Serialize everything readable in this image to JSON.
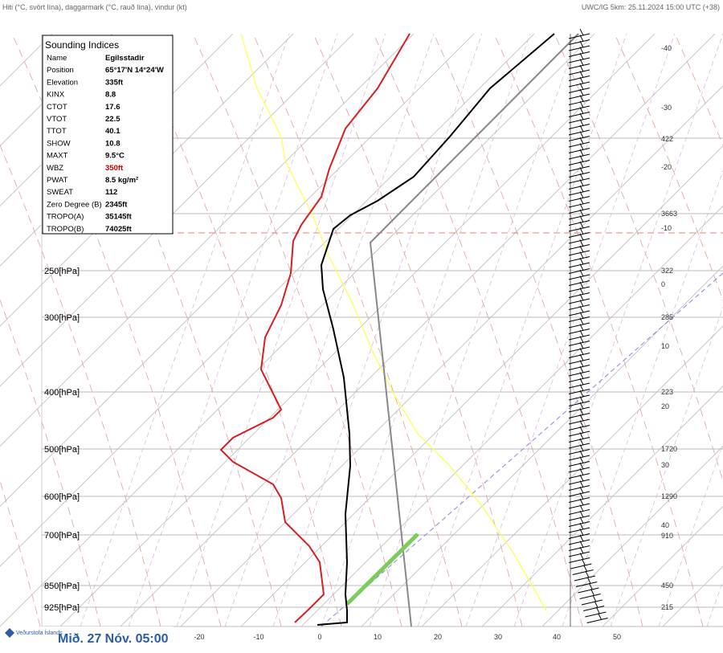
{
  "header": {
    "left": "Hiti (°C, svört lína), daggarmark (°C, rauð lína), vindur (kt)",
    "right": "UWC/IG 5km: 25.11.2024 15:00 UTC (+38)"
  },
  "indices": {
    "title": "Sounding Indices",
    "rows": [
      [
        "Name",
        "Egilsstadir"
      ],
      [
        "Position",
        "65°17'N 14°24'W"
      ],
      [
        "Elevation",
        "335ft"
      ],
      [
        "KINX",
        "8.8"
      ],
      [
        "CTOT",
        "17.6"
      ],
      [
        "VTOT",
        "22.5"
      ],
      [
        "TTOT",
        "40.1"
      ],
      [
        "SHOW",
        "10.8"
      ],
      [
        "MAXT",
        "9.5°C"
      ],
      [
        "WBZ",
        "350ft"
      ],
      [
        "PWAT",
        "8.5 kg/m²"
      ],
      [
        "SWEAT",
        "112"
      ],
      [
        "Zero Degree (B)",
        "2345ft"
      ],
      [
        "TROPO(A)",
        "35145ft"
      ],
      [
        "TROPO(B)",
        "74025ft"
      ]
    ]
  },
  "pressure_labels": [
    "250[hPa]",
    "300[hPa]",
    "400[hPa]",
    "500[hPa]",
    "600[hPa]",
    "700[hPa]",
    "850[hPa]",
    "925[hPa]"
  ],
  "right_labels": [
    "-40",
    "-30",
    "422",
    "-20",
    "3663",
    "-10",
    "322",
    "0",
    "285",
    "10",
    "223",
    "20",
    "1720",
    "30",
    "1290",
    "40",
    "910",
    "450",
    "215"
  ],
  "bottom_labels": [
    "-20",
    "-10",
    "0",
    "10",
    "20",
    "30",
    "40",
    "50"
  ],
  "footer": {
    "org": "Veðurstofa Íslands",
    "time": "Mið. 27 Nóv. 05:00"
  }
}
